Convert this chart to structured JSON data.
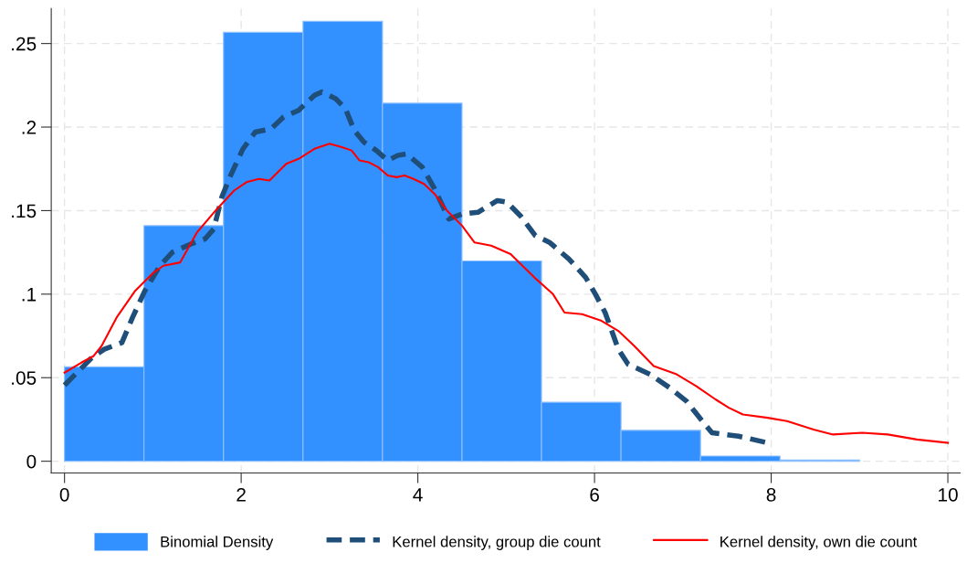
{
  "chart_data": {
    "type": "histogram",
    "bins": [
      0,
      0.9,
      1.8,
      2.7,
      3.6,
      4.5,
      5.4,
      6.3,
      7.2,
      8.1,
      9.0
    ],
    "series": [
      {
        "name": "Binomial Density",
        "color": "#3390ff",
        "values": [
          0.0565,
          0.141,
          0.2567,
          0.2633,
          0.2143,
          0.1199,
          0.0353,
          0.0185,
          0.0031,
          0.0008
        ]
      },
      {
        "name": "Kernel density, group die count",
        "type": "line",
        "color": "#1f4e79",
        "line_style": "dashed",
        "x": [
          0,
          0.31,
          0.45,
          0.65,
          0.77,
          0.91,
          1.08,
          1.22,
          1.43,
          1.59,
          1.69,
          1.78,
          1.88,
          2.02,
          2.16,
          2.34,
          2.48,
          2.65,
          2.83,
          2.91,
          3.07,
          3.18,
          3.28,
          3.39,
          3.53,
          3.66,
          3.77,
          3.87,
          4.05,
          4.19,
          4.35,
          4.5,
          4.68,
          4.9,
          5.01,
          5.16,
          5.33,
          5.49,
          5.71,
          5.9,
          6.01,
          6.12,
          6.27,
          6.38,
          6.63,
          6.85,
          7.04,
          7.22,
          7.33,
          7.63,
          7.96
        ],
        "values": [
          0.0455,
          0.062,
          0.067,
          0.071,
          0.086,
          0.102,
          0.117,
          0.125,
          0.13,
          0.133,
          0.139,
          0.158,
          0.171,
          0.187,
          0.197,
          0.199,
          0.206,
          0.21,
          0.219,
          0.221,
          0.217,
          0.211,
          0.198,
          0.191,
          0.186,
          0.18,
          0.183,
          0.184,
          0.176,
          0.163,
          0.145,
          0.148,
          0.149,
          0.156,
          0.155,
          0.147,
          0.135,
          0.131,
          0.121,
          0.11,
          0.1,
          0.089,
          0.067,
          0.058,
          0.052,
          0.044,
          0.036,
          0.024,
          0.017,
          0.015,
          0.011
        ]
      },
      {
        "name": "Kernel density, own die count",
        "type": "line",
        "color": "#ff0000",
        "line_style": "solid",
        "x": [
          0,
          0.19,
          0.33,
          0.42,
          0.59,
          0.8,
          1.01,
          1.12,
          1.31,
          1.5,
          1.71,
          1.92,
          2.06,
          2.2,
          2.32,
          2.51,
          2.65,
          2.83,
          3.0,
          3.14,
          3.25,
          3.34,
          3.44,
          3.55,
          3.66,
          3.76,
          3.85,
          3.95,
          4.07,
          4.19,
          4.33,
          4.5,
          4.64,
          4.83,
          5.05,
          5.34,
          5.53,
          5.66,
          5.86,
          6.08,
          6.27,
          6.45,
          6.67,
          6.93,
          7.15,
          7.37,
          7.52,
          7.68,
          7.96,
          8.18,
          8.48,
          8.7,
          9.03,
          9.32,
          9.65,
          10.0
        ],
        "values": [
          0.053,
          0.059,
          0.063,
          0.069,
          0.086,
          0.102,
          0.113,
          0.117,
          0.119,
          0.137,
          0.15,
          0.162,
          0.167,
          0.169,
          0.168,
          0.178,
          0.181,
          0.187,
          0.19,
          0.188,
          0.186,
          0.18,
          0.179,
          0.176,
          0.171,
          0.17,
          0.171,
          0.169,
          0.166,
          0.16,
          0.15,
          0.141,
          0.131,
          0.129,
          0.124,
          0.109,
          0.1,
          0.089,
          0.088,
          0.084,
          0.078,
          0.069,
          0.057,
          0.052,
          0.045,
          0.037,
          0.032,
          0.028,
          0.026,
          0.024,
          0.019,
          0.016,
          0.017,
          0.016,
          0.013,
          0.011
        ]
      }
    ],
    "xlim": [
      -0.15,
      10.14
    ],
    "ylim": [
      -0.007,
      0.271
    ],
    "xticks": [
      0,
      2,
      4,
      6,
      8,
      10
    ],
    "yticks": [
      {
        "value": 0,
        "label": "0"
      },
      {
        "value": 0.05,
        "label": ".05"
      },
      {
        "value": 0.1,
        "label": ".1"
      },
      {
        "value": 0.15,
        "label": ".15"
      },
      {
        "value": 0.2,
        "label": ".2"
      },
      {
        "value": 0.25,
        "label": ".25"
      }
    ],
    "grid": true,
    "legend": "bottom"
  }
}
